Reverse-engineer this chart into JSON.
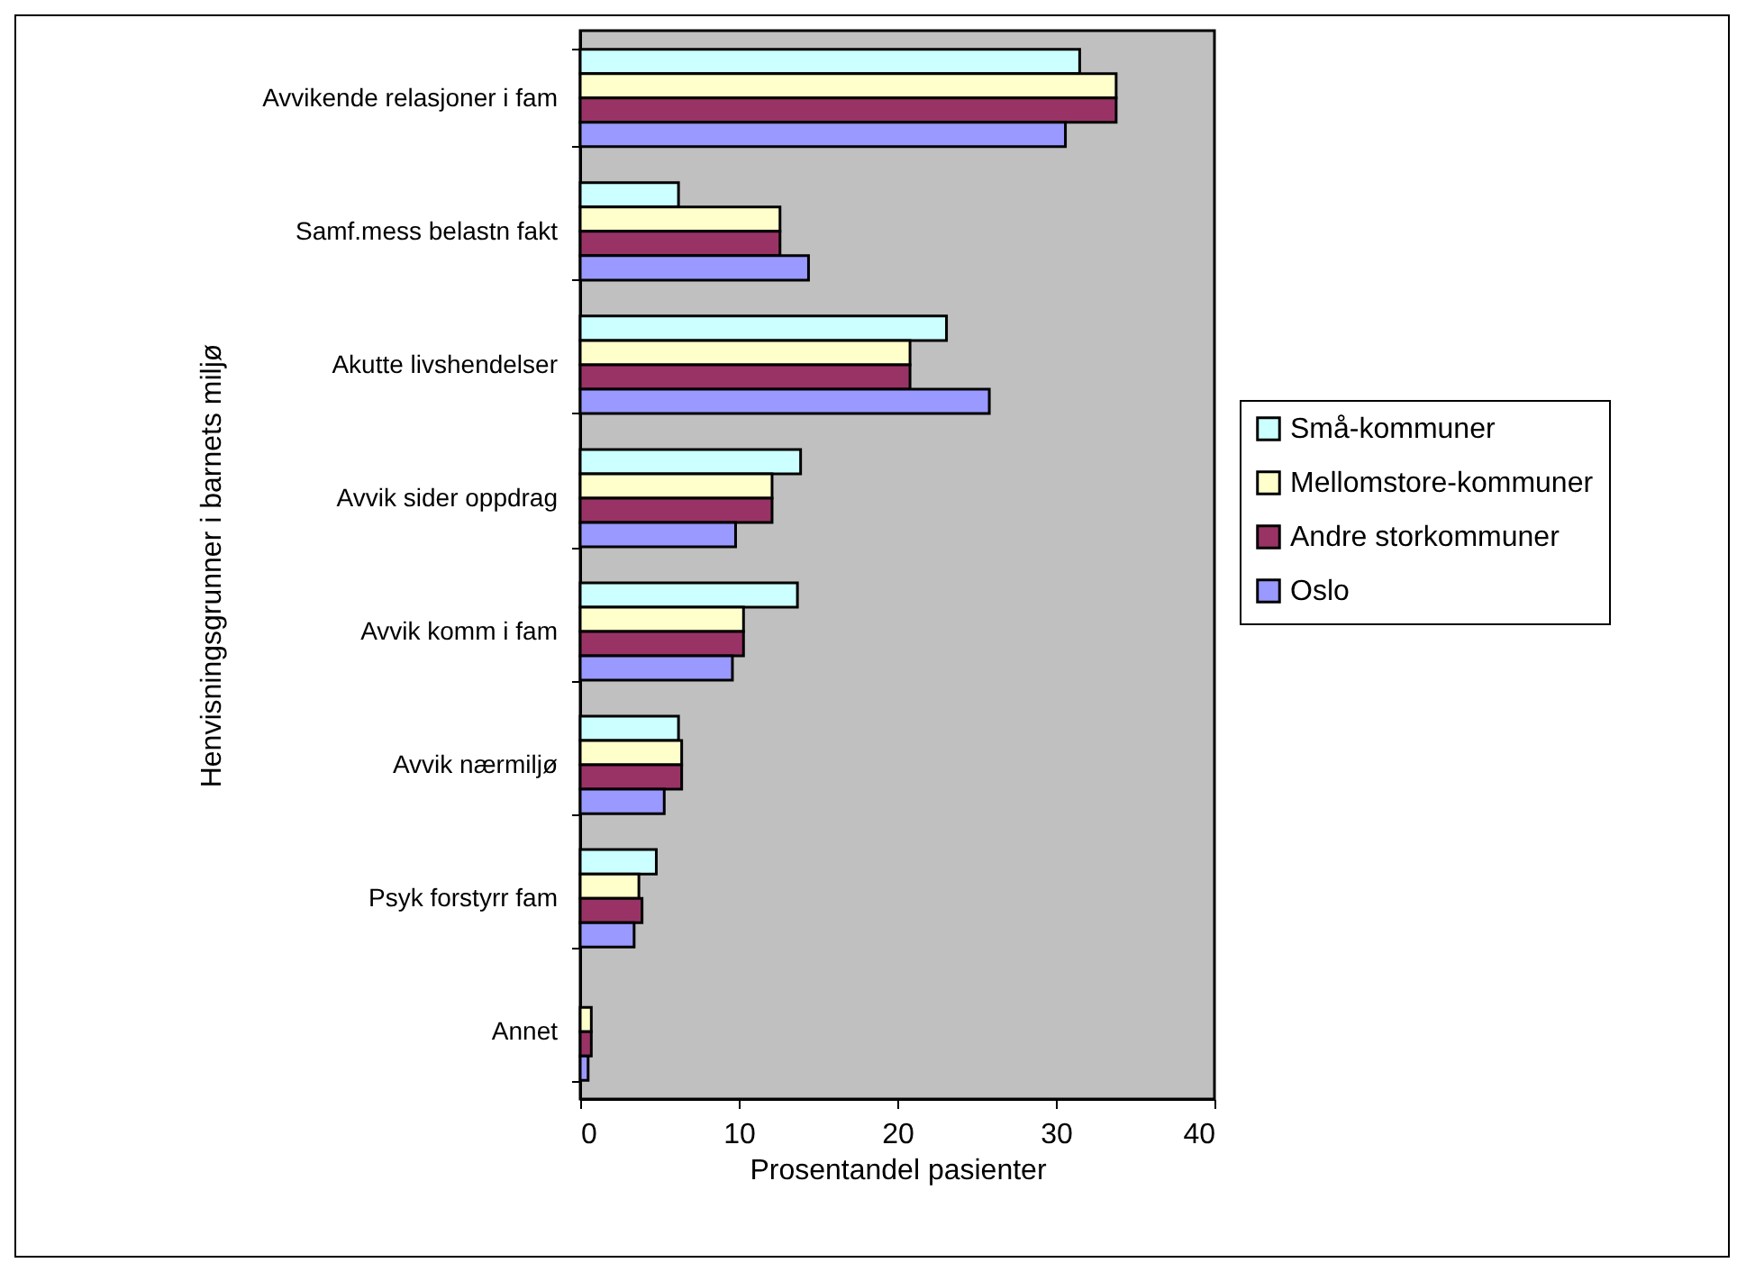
{
  "chart_data": {
    "type": "bar",
    "orientation": "horizontal",
    "xlabel": "Prosentandel pasienter",
    "ylabel": "Henvisningsgrunner i barnets miljø",
    "categories": [
      "Avvikende relasjoner i fam",
      "Samf.mess belastn fakt",
      "Akutte livshendelser",
      "Avvik sider oppdrag",
      "Avvik komm i fam",
      "Avvik nærmiljø",
      "Psyk forstyrr fam",
      "Annet"
    ],
    "series": [
      {
        "name": "Små-kommuner",
        "color": "#ccffff",
        "values": [
          31.5,
          6.2,
          23.1,
          13.9,
          13.7,
          6.2,
          4.8,
          null
        ]
      },
      {
        "name": "Mellomstore-kommuner",
        "color": "#ffffcc",
        "values": [
          33.8,
          12.6,
          20.8,
          12.1,
          10.3,
          6.4,
          3.7,
          0.7
        ]
      },
      {
        "name": "Andre storkommuner",
        "color": "#993366",
        "values": [
          33.8,
          12.6,
          20.8,
          12.1,
          10.3,
          6.4,
          3.9,
          0.7
        ]
      },
      {
        "name": "Oslo",
        "color": "#9999ff",
        "values": [
          30.6,
          14.4,
          25.8,
          9.8,
          9.6,
          5.3,
          3.4,
          0.5
        ]
      }
    ],
    "xlim": [
      0,
      40
    ],
    "xticks": [
      0,
      10,
      20,
      30,
      40
    ],
    "legend": "right"
  }
}
